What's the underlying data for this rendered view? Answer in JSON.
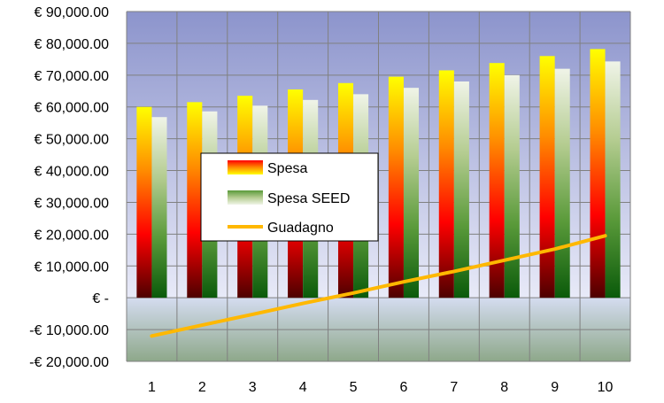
{
  "chart_data": {
    "type": "bar",
    "title": "",
    "xlabel": "",
    "ylabel": "",
    "categories": [
      "1",
      "2",
      "3",
      "4",
      "5",
      "6",
      "7",
      "8",
      "9",
      "10"
    ],
    "ylim": [
      -20000,
      90000
    ],
    "y_ticks": [
      90000,
      80000,
      70000,
      60000,
      50000,
      40000,
      30000,
      20000,
      10000,
      0,
      -10000,
      -20000
    ],
    "y_tick_labels": [
      "€ 90,000.00",
      "€ 80,000.00",
      "€ 70,000.00",
      "€ 60,000.00",
      "€ 50,000.00",
      "€ 40,000.00",
      "€ 30,000.00",
      "€ 20,000.00",
      "€ 10,000.00",
      "€ -",
      "-€ 10,000.00",
      "-€ 20,000.00"
    ],
    "grid": true,
    "legend_position": "center-left",
    "series": [
      {
        "name": "Spesa",
        "kind": "bar",
        "colors": [
          "#ffff00",
          "#ff8c00",
          "#ff0000",
          "#4d0000"
        ],
        "values": [
          60000,
          61500,
          63500,
          65500,
          67500,
          69500,
          71500,
          73800,
          76000,
          78200
        ]
      },
      {
        "name": "Spesa SEED",
        "kind": "bar",
        "colors": [
          "#f0f4e8",
          "#b4cc90",
          "#5a9a3a",
          "#0a5a0a"
        ],
        "values": [
          56800,
          58600,
          60400,
          62200,
          64000,
          66000,
          68000,
          70000,
          72000,
          74300
        ]
      },
      {
        "name": "Guadagno",
        "kind": "line",
        "color": "#ffb800",
        "values": [
          -12000,
          -8600,
          -5200,
          -1800,
          1500,
          5000,
          8300,
          11800,
          15300,
          19500
        ]
      }
    ]
  }
}
